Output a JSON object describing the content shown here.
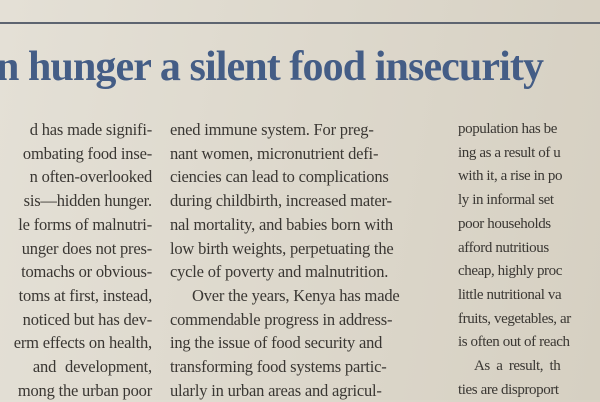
{
  "headline": "n hunger a silent food insecurity",
  "columns": [
    {
      "lines": [
        "d has made signifi-",
        "ombating food inse-",
        "n often-overlooked",
        "sis—hidden hunger.",
        "le forms of malnutri-",
        "unger does not pres-",
        "tomachs or obvious-",
        "toms at first, instead,",
        "noticed but has dev-",
        "erm effects on health,",
        "and development,",
        "mong the urban poor"
      ]
    },
    {
      "lines": [
        "ened immune system. For preg-",
        "nant women, micronutrient defi-",
        "ciencies can lead to complications",
        "during childbirth, increased mater-",
        "nal mortality, and babies born with",
        "low birth weights, perpetuating the",
        "cycle of poverty and malnutrition.",
        "Over the years, Kenya has made",
        "commendable progress in address-",
        "ing the issue of food security and",
        "transforming food systems partic-",
        "ularly in urban areas and agricul-"
      ]
    },
    {
      "lines": [
        "population has be",
        "ing as a result of u",
        "with it, a rise in po",
        "ly in informal set",
        "poor households",
        "afford nutritious",
        "cheap, highly proc",
        "little nutritional va",
        "fruits, vegetables, ar",
        "is often out of reach",
        "As a result, th",
        "ties are disproport"
      ]
    }
  ]
}
